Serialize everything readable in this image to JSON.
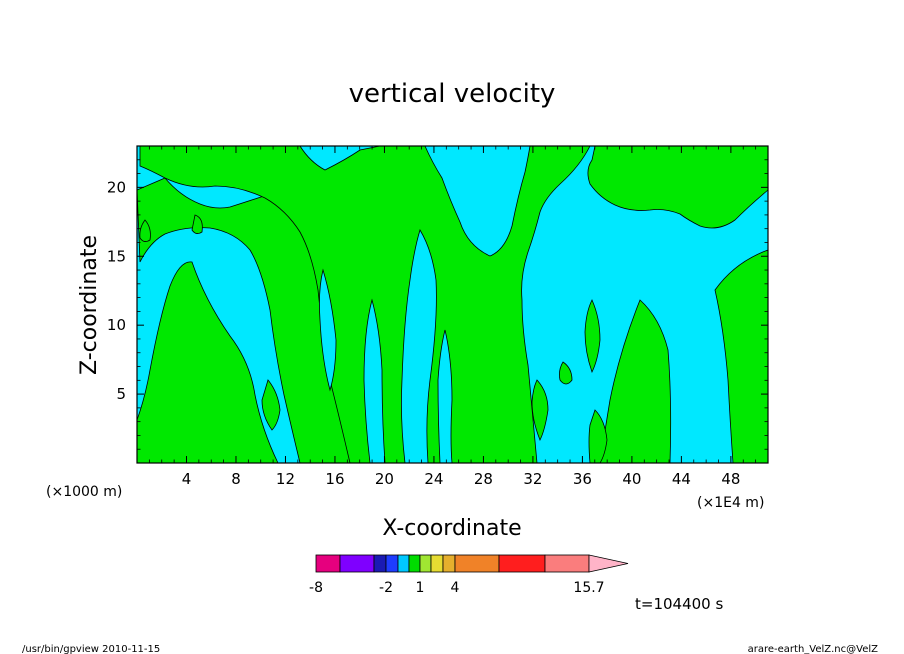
{
  "chart_data": {
    "type": "heatmap",
    "title": "vertical velocity",
    "xlabel": "X-coordinate",
    "ylabel": "Z-coordinate",
    "x_scale_left": "(×1000 m)",
    "x_scale_right": "(×1E4 m)",
    "xlim": [
      0,
      51
    ],
    "ylim": [
      0,
      23
    ],
    "xticks": [
      "4",
      "8",
      "12",
      "16",
      "20",
      "24",
      "28",
      "32",
      "36",
      "40",
      "44",
      "48"
    ],
    "yticks": [
      "5",
      "10",
      "15",
      "20"
    ],
    "grid": false,
    "colorbar": {
      "colors": [
        "#e6007e",
        "#7f00ff",
        "#1a1ab4",
        "#1e3cff",
        "#00c8ff",
        "#00dc00",
        "#a0e632",
        "#e6dc32",
        "#e6af2d",
        "#f08228",
        "#ff1e1e",
        "#fa7d7d",
        "#ffb4c8"
      ],
      "tick_labels": [
        "-8",
        "-2",
        "1",
        "4",
        "15.7"
      ]
    },
    "fill_colors": {
      "negative": "#00e8ff",
      "positive": "#00e800"
    },
    "time_label": "t=104400 s"
  },
  "footer": {
    "left": "/usr/bin/gpview  2010-11-15",
    "right": "arare-earth_VelZ.nc@VelZ"
  }
}
